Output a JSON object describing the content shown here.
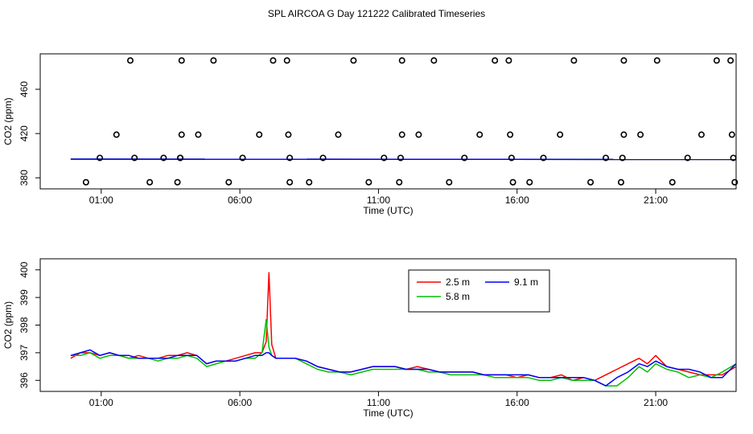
{
  "title": "SPL AIRCOA G  Day 121222  Calibrated Timeseries",
  "colors": {
    "s25": "#ff0000",
    "s58": "#00c000",
    "s91": "#0000ff",
    "axis": "#000000"
  },
  "chart_data": [
    {
      "type": "scatter",
      "title": "",
      "xlabel": "Time (UTC)",
      "ylabel": "CO2 (ppm)",
      "xlim_hours": [
        -1.2,
        23.9
      ],
      "ylim": [
        370,
        492
      ],
      "x_ticks": [
        {
          "h": 1,
          "label": "01:00"
        },
        {
          "h": 6,
          "label": "06:00"
        },
        {
          "h": 11,
          "label": "11:00"
        },
        {
          "h": 16,
          "label": "16:00"
        },
        {
          "h": 21,
          "label": "21:00"
        }
      ],
      "y_ticks": [
        {
          "v": 380,
          "label": "380"
        },
        {
          "v": 420,
          "label": "420"
        },
        {
          "v": 460,
          "label": "460"
        }
      ],
      "calibration_points": [
        {
          "h": 0.45,
          "v": 376
        },
        {
          "h": 0.95,
          "v": 398
        },
        {
          "h": 1.55,
          "v": 419
        },
        {
          "h": 2.05,
          "v": 486
        },
        {
          "h": 2.2,
          "v": 398
        },
        {
          "h": 2.75,
          "v": 376
        },
        {
          "h": 3.25,
          "v": 398
        },
        {
          "h": 3.75,
          "v": 376
        },
        {
          "h": 3.85,
          "v": 398
        },
        {
          "h": 3.85,
          "v": 398
        },
        {
          "h": 3.9,
          "v": 419
        },
        {
          "h": 3.9,
          "v": 486
        },
        {
          "h": 4.5,
          "v": 419
        },
        {
          "h": 5.05,
          "v": 486
        },
        {
          "h": 5.6,
          "v": 376
        },
        {
          "h": 6.1,
          "v": 398
        },
        {
          "h": 6.7,
          "v": 419
        },
        {
          "h": 7.2,
          "v": 486
        },
        {
          "h": 7.7,
          "v": 486
        },
        {
          "h": 7.75,
          "v": 419
        },
        {
          "h": 7.8,
          "v": 398
        },
        {
          "h": 7.8,
          "v": 376
        },
        {
          "h": 8.5,
          "v": 376
        },
        {
          "h": 9.0,
          "v": 398
        },
        {
          "h": 9.55,
          "v": 419
        },
        {
          "h": 10.1,
          "v": 486
        },
        {
          "h": 10.65,
          "v": 376
        },
        {
          "h": 11.2,
          "v": 398
        },
        {
          "h": 11.75,
          "v": 376
        },
        {
          "h": 11.8,
          "v": 398
        },
        {
          "h": 11.85,
          "v": 419
        },
        {
          "h": 11.85,
          "v": 486
        },
        {
          "h": 12.45,
          "v": 419
        },
        {
          "h": 13.0,
          "v": 486
        },
        {
          "h": 13.55,
          "v": 376
        },
        {
          "h": 14.1,
          "v": 398
        },
        {
          "h": 14.65,
          "v": 419
        },
        {
          "h": 15.2,
          "v": 486
        },
        {
          "h": 15.7,
          "v": 486
        },
        {
          "h": 15.75,
          "v": 419
        },
        {
          "h": 15.8,
          "v": 398
        },
        {
          "h": 15.85,
          "v": 376
        },
        {
          "h": 16.45,
          "v": 376
        },
        {
          "h": 16.95,
          "v": 398
        },
        {
          "h": 17.55,
          "v": 419
        },
        {
          "h": 18.05,
          "v": 486
        },
        {
          "h": 18.65,
          "v": 376
        },
        {
          "h": 19.2,
          "v": 398
        },
        {
          "h": 19.75,
          "v": 376
        },
        {
          "h": 19.8,
          "v": 398
        },
        {
          "h": 19.85,
          "v": 419
        },
        {
          "h": 19.85,
          "v": 486
        },
        {
          "h": 20.45,
          "v": 419
        },
        {
          "h": 21.05,
          "v": 486
        },
        {
          "h": 21.6,
          "v": 376
        },
        {
          "h": 22.15,
          "v": 398
        },
        {
          "h": 22.65,
          "v": 419
        },
        {
          "h": 23.2,
          "v": 486
        },
        {
          "h": 23.7,
          "v": 486
        },
        {
          "h": 23.75,
          "v": 419
        },
        {
          "h": 23.8,
          "v": 398
        },
        {
          "h": 23.85,
          "v": 376
        }
      ],
      "series": [
        {
          "name": "2.5 m",
          "color": "#ff0000",
          "x": [
            -0.1,
            23.9
          ],
          "values": [
            396.9,
            396.6
          ]
        },
        {
          "name": "5.8 m",
          "color": "#00c000",
          "x": [
            -0.1,
            23.9
          ],
          "values": [
            396.9,
            396.6
          ]
        },
        {
          "name": "9.1 m",
          "color": "#0000ff",
          "x": [
            -0.1,
            23.9
          ],
          "values": [
            396.9,
            396.6
          ]
        }
      ]
    },
    {
      "type": "line",
      "title": "",
      "xlabel": "Time (UTC)",
      "ylabel": "CO2 (ppm)",
      "xlim_hours": [
        -1.2,
        23.9
      ],
      "ylim": [
        395.6,
        400.4
      ],
      "x_ticks": [
        {
          "h": 1,
          "label": "01:00"
        },
        {
          "h": 6,
          "label": "06:00"
        },
        {
          "h": 11,
          "label": "11:00"
        },
        {
          "h": 16,
          "label": "16:00"
        },
        {
          "h": 21,
          "label": "21:00"
        }
      ],
      "y_ticks": [
        {
          "v": 396,
          "label": "396"
        },
        {
          "v": 397,
          "label": "397"
        },
        {
          "v": 398,
          "label": "398"
        },
        {
          "v": 399,
          "label": "399"
        },
        {
          "v": 400,
          "label": "400"
        }
      ],
      "legend": [
        "2.5 m",
        "9.1 m",
        "5.8 m"
      ],
      "x": [
        -0.1,
        0.25,
        0.6,
        0.95,
        1.3,
        1.65,
        2.0,
        2.35,
        2.7,
        3.05,
        3.4,
        3.75,
        4.1,
        4.45,
        4.8,
        5.15,
        5.5,
        5.85,
        6.2,
        6.55,
        6.8,
        6.95,
        7.05,
        7.15,
        7.3,
        7.6,
        8.0,
        8.4,
        8.8,
        9.2,
        9.6,
        10.0,
        10.4,
        10.8,
        11.2,
        11.6,
        12.0,
        12.4,
        12.8,
        13.2,
        13.6,
        14.0,
        14.4,
        14.8,
        15.2,
        15.6,
        16.0,
        16.4,
        16.8,
        17.2,
        17.6,
        18.0,
        18.4,
        18.8,
        19.2,
        19.6,
        20.0,
        20.4,
        20.7,
        21.0,
        21.4,
        21.8,
        22.2,
        22.6,
        23.0,
        23.4,
        23.9
      ],
      "series": [
        {
          "name": "2.5 m",
          "color": "#ff0000",
          "values": [
            396.8,
            397.0,
            397.0,
            396.9,
            397.0,
            396.9,
            396.8,
            396.9,
            396.8,
            396.8,
            396.9,
            396.9,
            397.0,
            396.9,
            396.6,
            396.7,
            396.7,
            396.8,
            396.9,
            397.0,
            397.0,
            397.4,
            399.9,
            397.3,
            396.8,
            396.8,
            396.8,
            396.7,
            396.5,
            396.4,
            396.3,
            396.3,
            396.4,
            396.5,
            396.5,
            396.5,
            396.4,
            396.5,
            396.4,
            396.3,
            396.3,
            396.3,
            396.3,
            396.2,
            396.2,
            396.2,
            396.1,
            396.2,
            396.1,
            396.1,
            396.2,
            396.0,
            396.1,
            396.0,
            396.2,
            396.4,
            396.6,
            396.8,
            396.6,
            396.9,
            396.5,
            396.4,
            396.3,
            396.2,
            396.2,
            396.2,
            396.5
          ]
        },
        {
          "name": "5.8 m",
          "color": "#00c000",
          "values": [
            396.9,
            396.9,
            397.0,
            396.8,
            396.9,
            396.9,
            396.8,
            396.8,
            396.8,
            396.7,
            396.8,
            396.8,
            396.9,
            396.8,
            396.5,
            396.6,
            396.7,
            396.7,
            396.8,
            396.8,
            397.0,
            398.2,
            397.2,
            396.9,
            396.8,
            396.8,
            396.8,
            396.6,
            396.4,
            396.3,
            396.3,
            396.2,
            396.3,
            396.4,
            396.4,
            396.4,
            396.4,
            396.4,
            396.3,
            396.3,
            396.2,
            396.2,
            396.2,
            396.2,
            396.1,
            396.1,
            396.1,
            396.1,
            396.0,
            396.0,
            396.1,
            396.0,
            396.0,
            396.0,
            395.8,
            395.8,
            396.1,
            396.5,
            396.3,
            396.6,
            396.4,
            396.3,
            396.1,
            396.2,
            396.1,
            396.3,
            396.6
          ]
        },
        {
          "name": "9.1 m",
          "color": "#0000ff",
          "values": [
            396.9,
            397.0,
            397.1,
            396.9,
            397.0,
            396.9,
            396.9,
            396.8,
            396.8,
            396.8,
            396.8,
            396.9,
            396.9,
            396.9,
            396.6,
            396.7,
            396.7,
            396.7,
            396.8,
            396.9,
            396.9,
            397.0,
            397.0,
            396.9,
            396.8,
            396.8,
            396.8,
            396.7,
            396.5,
            396.4,
            396.3,
            396.3,
            396.4,
            396.5,
            396.5,
            396.5,
            396.4,
            396.4,
            396.4,
            396.3,
            396.3,
            396.3,
            396.3,
            396.2,
            396.2,
            396.2,
            396.2,
            396.2,
            396.1,
            396.1,
            396.1,
            396.1,
            396.1,
            396.0,
            395.8,
            396.1,
            396.3,
            396.6,
            396.5,
            396.7,
            396.5,
            396.4,
            396.4,
            396.3,
            396.1,
            396.1,
            396.6
          ]
        }
      ]
    }
  ]
}
